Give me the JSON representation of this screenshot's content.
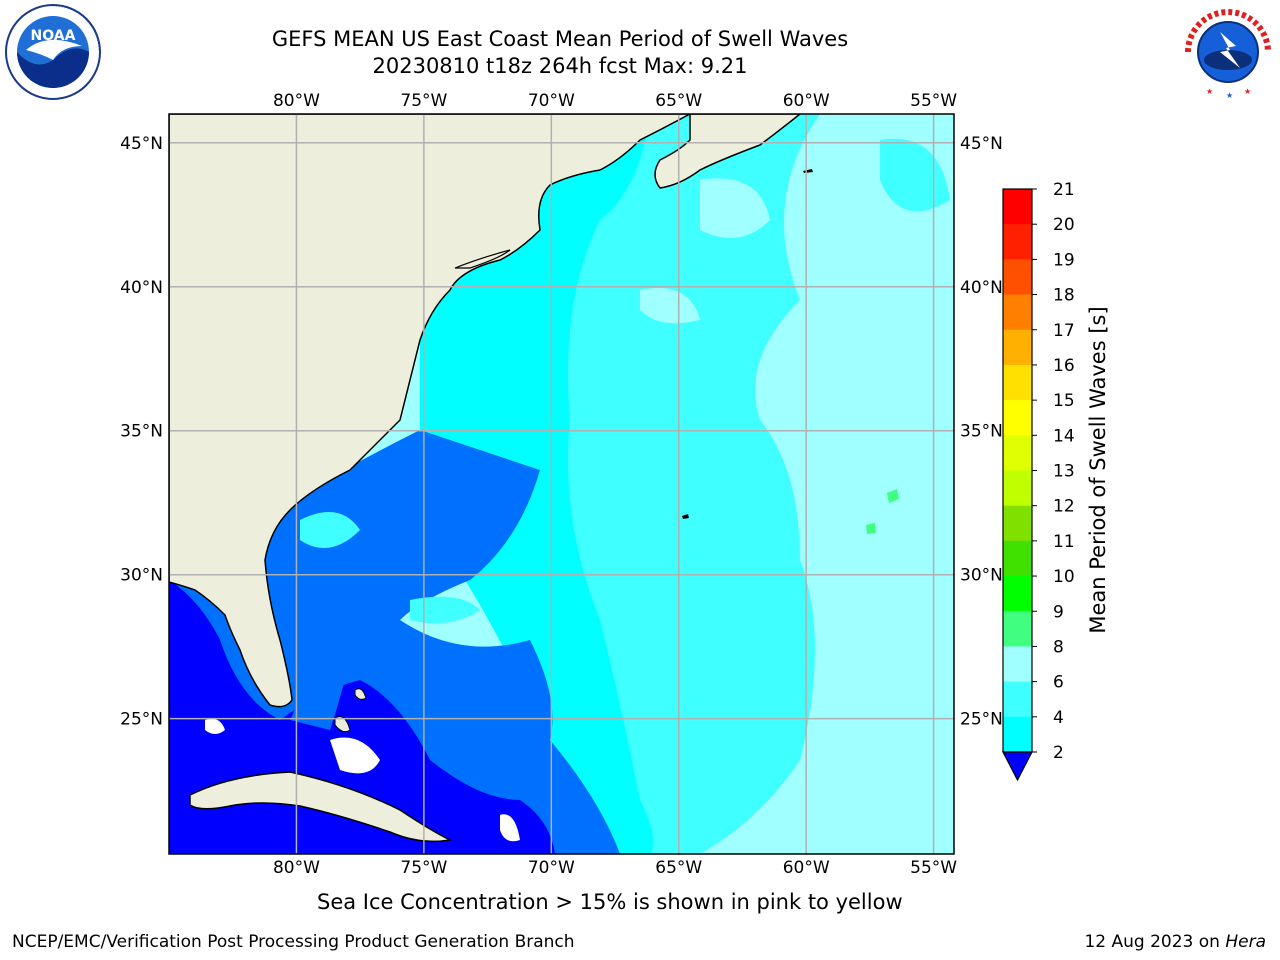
{
  "title": {
    "line1": "GEFS MEAN US East Coast Mean Period of Swell Waves",
    "line2": "20230810 t18z 264h fcst   Max: 9.21"
  },
  "logos": {
    "left": {
      "name": "NOAA",
      "ring_text": "NATIONAL OCEANIC AND ATMOSPHERIC ADMINISTRATION · U.S. DEPARTMENT OF COMMERCE"
    },
    "right": {
      "name": "NATIONAL WEATHER SERVICE"
    }
  },
  "map": {
    "lon_labels": [
      "80°W",
      "75°W",
      "70°W",
      "65°W",
      "60°W",
      "55°W"
    ],
    "lat_labels": [
      "45°N",
      "40°N",
      "35°N",
      "30°N",
      "25°N"
    ],
    "lon_values": [
      -80,
      -75,
      -70,
      -65,
      -60,
      -55
    ],
    "lat_values": [
      45,
      40,
      35,
      30,
      25
    ],
    "extent": {
      "lon_min": -85,
      "lon_max": -54.2,
      "lat_min": 20.3,
      "lat_max": 46
    },
    "colors": {
      "land": "#eeeedd",
      "ocean_low": "#0000ff",
      "grid": "#b0b0b0"
    }
  },
  "colorbar": {
    "label": "Mean Period of Swell Waves [s]",
    "ticks": [
      "2",
      "4",
      "6",
      "8",
      "9",
      "10",
      "11",
      "12",
      "13",
      "14",
      "15",
      "16",
      "17",
      "18",
      "19",
      "20",
      "21"
    ],
    "colors": [
      "#0000ff",
      "#0070ff",
      "#00ffff",
      "#40ffff",
      "#a0ffff",
      "#40ff80",
      "#00ff00",
      "#40e000",
      "#80e000",
      "#c0ff00",
      "#e0ff00",
      "#ffff00",
      "#ffe000",
      "#ffb000",
      "#ff8000",
      "#ff5000",
      "#ff2000",
      "#ff0000"
    ]
  },
  "subcaption": "Sea Ice Concentration > 15% is shown in pink to yellow",
  "footer": {
    "left": "NCEP/EMC/Verification Post Processing Product Generation Branch",
    "right_prefix": "12 Aug 2023 on ",
    "right_machine": "Hera"
  }
}
